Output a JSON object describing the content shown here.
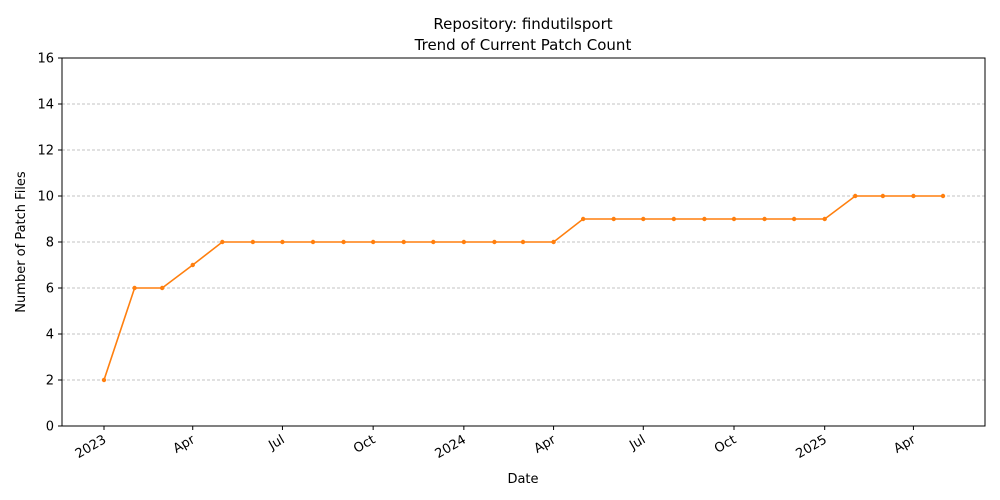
{
  "chart_data": {
    "type": "line",
    "title": "Repository: findutilsport",
    "subtitle": "Trend of Current Patch Count",
    "xlabel": "Date",
    "ylabel": "Number of Patch Files",
    "ylim": [
      0,
      16
    ],
    "yticks": [
      0,
      2,
      4,
      6,
      8,
      10,
      12,
      14,
      16
    ],
    "grid": "horizontal dashed",
    "color": "#ff7f0e",
    "xticks": [
      {
        "date": "2023-01-01",
        "label": "2023"
      },
      {
        "date": "2023-04-01",
        "label": "Apr"
      },
      {
        "date": "2023-07-01",
        "label": "Jul"
      },
      {
        "date": "2023-10-01",
        "label": "Oct"
      },
      {
        "date": "2024-01-01",
        "label": "2024"
      },
      {
        "date": "2024-04-01",
        "label": "Apr"
      },
      {
        "date": "2024-07-01",
        "label": "Jul"
      },
      {
        "date": "2024-10-01",
        "label": "Oct"
      },
      {
        "date": "2025-01-01",
        "label": "2025"
      },
      {
        "date": "2025-04-01",
        "label": "Apr"
      }
    ],
    "x": [
      "2023-01-01",
      "2023-02-01",
      "2023-03-01",
      "2023-04-01",
      "2023-05-01",
      "2023-06-01",
      "2023-07-01",
      "2023-08-01",
      "2023-09-01",
      "2023-10-01",
      "2023-11-01",
      "2023-12-01",
      "2024-01-01",
      "2024-02-01",
      "2024-03-01",
      "2024-04-01",
      "2024-05-01",
      "2024-06-01",
      "2024-07-01",
      "2024-08-01",
      "2024-09-01",
      "2024-10-01",
      "2024-11-01",
      "2024-12-01",
      "2025-01-01",
      "2025-02-01",
      "2025-03-01",
      "2025-04-01",
      "2025-05-01"
    ],
    "values": [
      2,
      6,
      6,
      7,
      8,
      8,
      8,
      8,
      8,
      8,
      8,
      8,
      8,
      8,
      8,
      8,
      9,
      9,
      9,
      9,
      9,
      9,
      9,
      9,
      9,
      10,
      10,
      10,
      10
    ]
  }
}
